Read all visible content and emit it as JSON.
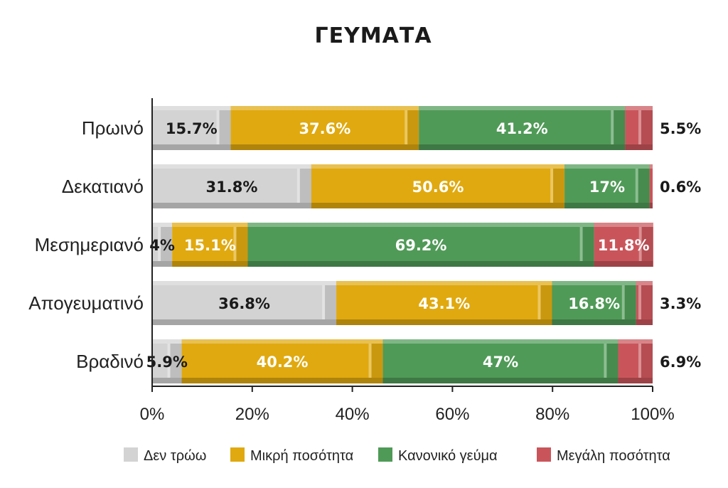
{
  "chart_data": {
    "type": "bar",
    "orientation": "horizontal",
    "stacked": true,
    "title": "ΓΕΥΜΑΤΑ",
    "categories": [
      "Πρωινό",
      "Δεκατιανό",
      "Μεσημεριανό",
      "Απογευματινό",
      "Βραδινό"
    ],
    "series": [
      {
        "name": "Δεν τρώω",
        "color": "#d3d3d3",
        "label_color": "#1a1a1a",
        "values": [
          15.7,
          31.8,
          4,
          36.8,
          5.9
        ],
        "labels": [
          "15.7%",
          "31.8%",
          "4%",
          "36.8%",
          "5.9%"
        ]
      },
      {
        "name": "Μικρή ποσότητα",
        "color": "#e0a90f",
        "label_color": "#ffffff",
        "values": [
          37.6,
          50.6,
          15.1,
          43.1,
          40.2
        ],
        "labels": [
          "37.6%",
          "50.6%",
          "15.1%",
          "43.1%",
          "40.2%"
        ]
      },
      {
        "name": "Κανονικό γεύμα",
        "color": "#4f9a57",
        "label_color": "#ffffff",
        "values": [
          41.2,
          17,
          69.2,
          16.8,
          47
        ],
        "labels": [
          "41.2%",
          "17%",
          "69.2%",
          "16.8%",
          "47%"
        ]
      },
      {
        "name": "Μεγάλη ποσότητα",
        "color": "#c9555b",
        "label_color": "#ffffff",
        "values": [
          5.5,
          0.6,
          11.8,
          3.3,
          6.9
        ],
        "labels": [
          "5.5%",
          "0.6%",
          "11.8%",
          "3.3%",
          "6.9%"
        ]
      }
    ],
    "outside_labels": [
      "5.5%",
      "0.6%",
      null,
      "3.3%",
      "6.9%"
    ],
    "xlim": [
      0,
      100
    ],
    "xticks": [
      "0%",
      "20%",
      "40%",
      "60%",
      "80%",
      "100%"
    ],
    "xtick_values": [
      0,
      20,
      40,
      60,
      80,
      100
    ],
    "grid": false,
    "legend_position": "bottom"
  }
}
